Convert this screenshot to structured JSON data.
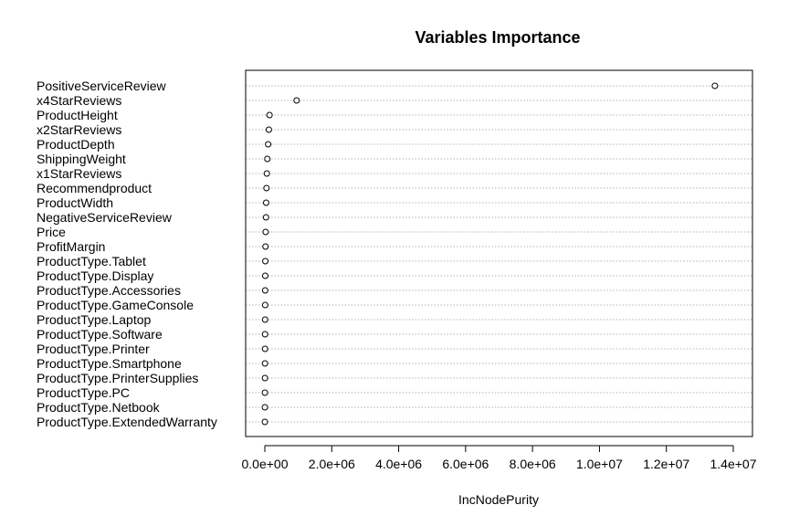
{
  "chart_data": {
    "type": "scatter",
    "title": "Variables Importance",
    "xlabel": "IncNodePurity",
    "ylabel": "",
    "xlim": [
      0,
      14000000
    ],
    "xticks": [
      0,
      2000000,
      4000000,
      6000000,
      8000000,
      10000000,
      12000000,
      14000000
    ],
    "xtick_labels": [
      "0.0e+00",
      "2.0e+06",
      "4.0e+06",
      "6.0e+06",
      "8.0e+06",
      "1.0e+07",
      "1.2e+07",
      "1.4e+07"
    ],
    "grid": "horizontal-dotted",
    "categories": [
      "PositiveServiceReview",
      "x4StarReviews",
      "ProductHeight",
      "x2StarReviews",
      "ProductDepth",
      "ShippingWeight",
      "x1StarReviews",
      "Recommendproduct",
      "ProductWidth",
      "NegativeServiceReview",
      "Price",
      "ProfitMargin",
      "ProductType.Tablet",
      "ProductType.Display",
      "ProductType.Accessories",
      "ProductType.GameConsole",
      "ProductType.Laptop",
      "ProductType.Software",
      "ProductType.Printer",
      "ProductType.Smartphone",
      "ProductType.PrinterSupplies",
      "ProductType.PC",
      "ProductType.Netbook",
      "ProductType.ExtendedWarranty"
    ],
    "values": [
      13450000,
      950000,
      140000,
      120000,
      100000,
      75000,
      60000,
      50000,
      40000,
      35000,
      25000,
      20000,
      15000,
      12000,
      10000,
      9000,
      8000,
      7000,
      6000,
      5000,
      4000,
      3000,
      2000,
      1000
    ]
  }
}
